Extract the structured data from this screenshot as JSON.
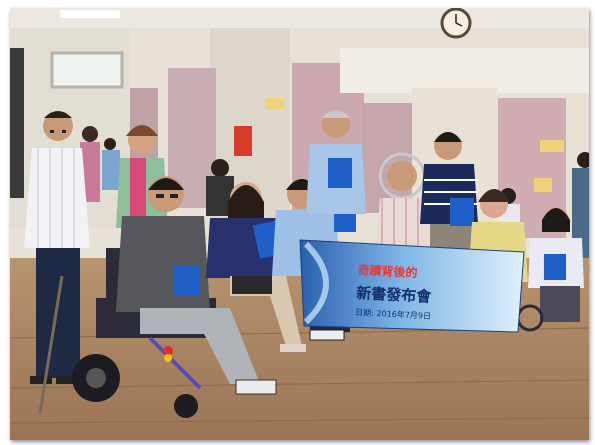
{
  "photo": {
    "subject": "group-photo-book-launch",
    "banner": {
      "line1": "奇蹟背後的",
      "line2": "新書發布會",
      "date": "日期: 2016年7月9日",
      "colors": {
        "banner_blue": "#2a5fb0",
        "banner_sky": "#bfe0f5"
      }
    }
  },
  "colors": {
    "floor": "#a98563",
    "wall": "#e7e1d6",
    "door": "#c9aeb4",
    "book": "#1f5fc8",
    "wheelchair": "#2b2b3a"
  }
}
